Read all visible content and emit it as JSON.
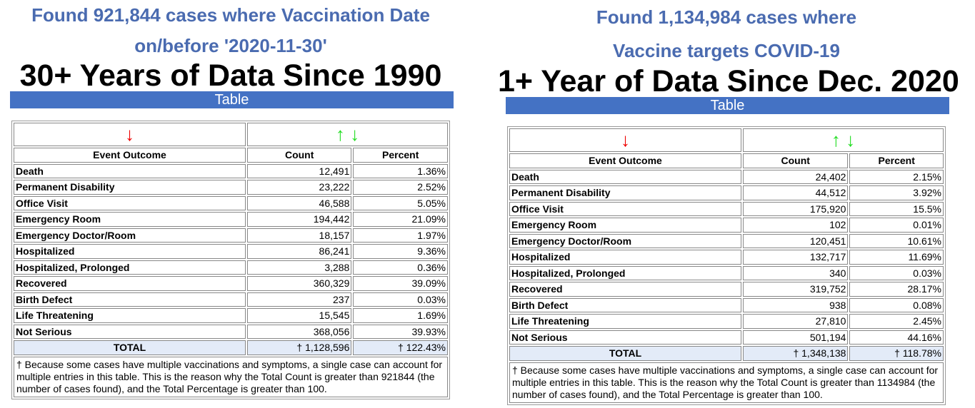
{
  "panels": [
    {
      "found_line1": "Found 921,844 cases where Vaccination Date",
      "found_line2": "on/before '2020-11-30'",
      "heading": "30+ Years of Data Since 1990",
      "bar_label": "Table",
      "arrows": {
        "left": "↓",
        "right_up": "↑",
        "right_down": "↓"
      },
      "columns": [
        "Event Outcome",
        "Count",
        "Percent"
      ],
      "rows": [
        [
          "Death",
          "12,491",
          "1.36%"
        ],
        [
          "Permanent Disability",
          "23,222",
          "2.52%"
        ],
        [
          "Office Visit",
          "46,588",
          "5.05%"
        ],
        [
          "Emergency Room",
          "194,442",
          "21.09%"
        ],
        [
          "Emergency Doctor/Room",
          "18,157",
          "1.97%"
        ],
        [
          "Hospitalized",
          "86,241",
          "9.36%"
        ],
        [
          "Hospitalized, Prolonged",
          "3,288",
          "0.36%"
        ],
        [
          "Recovered",
          "360,329",
          "39.09%"
        ],
        [
          "Birth Defect",
          "237",
          "0.03%"
        ],
        [
          "Life Threatening",
          "15,545",
          "1.69%"
        ],
        [
          "Not Serious",
          "368,056",
          "39.93%"
        ]
      ],
      "total": [
        "TOTAL",
        "† 1,128,596",
        "† 122.43%"
      ],
      "footnote": "† Because some cases have multiple vaccinations and symptoms, a single case can account for multiple entries in this table. This is the reason why the Total Count is greater than 921844 (the number of cases found), and the Total Percentage is greater than 100."
    },
    {
      "found_line1": "Found 1,134,984 cases where",
      "found_line2": "Vaccine targets COVID-19",
      "heading": "1+ Year of Data Since Dec. 2020",
      "bar_label": "Table",
      "arrows": {
        "left": "↓",
        "right_up": "↑",
        "right_down": "↓"
      },
      "columns": [
        "Event Outcome",
        "Count",
        "Percent"
      ],
      "rows": [
        [
          "Death",
          "24,402",
          "2.15%"
        ],
        [
          "Permanent Disability",
          "44,512",
          "3.92%"
        ],
        [
          "Office Visit",
          "175,920",
          "15.5%"
        ],
        [
          "Emergency Room",
          "102",
          "0.01%"
        ],
        [
          "Emergency Doctor/Room",
          "120,451",
          "10.61%"
        ],
        [
          "Hospitalized",
          "132,717",
          "11.69%"
        ],
        [
          "Hospitalized, Prolonged",
          "340",
          "0.03%"
        ],
        [
          "Recovered",
          "319,752",
          "28.17%"
        ],
        [
          "Birth Defect",
          "938",
          "0.08%"
        ],
        [
          "Life Threatening",
          "27,810",
          "2.45%"
        ],
        [
          "Not Serious",
          "501,194",
          "44.16%"
        ]
      ],
      "total": [
        "TOTAL",
        "† 1,348,138",
        "† 118.78%"
      ],
      "footnote": "† Because some cases have multiple vaccinations and symptoms, a single case can account for multiple entries in this table. This is the reason why the Total Count is greater than 1134984 (the number of cases found), and the Total Percentage is greater than 100."
    }
  ]
}
